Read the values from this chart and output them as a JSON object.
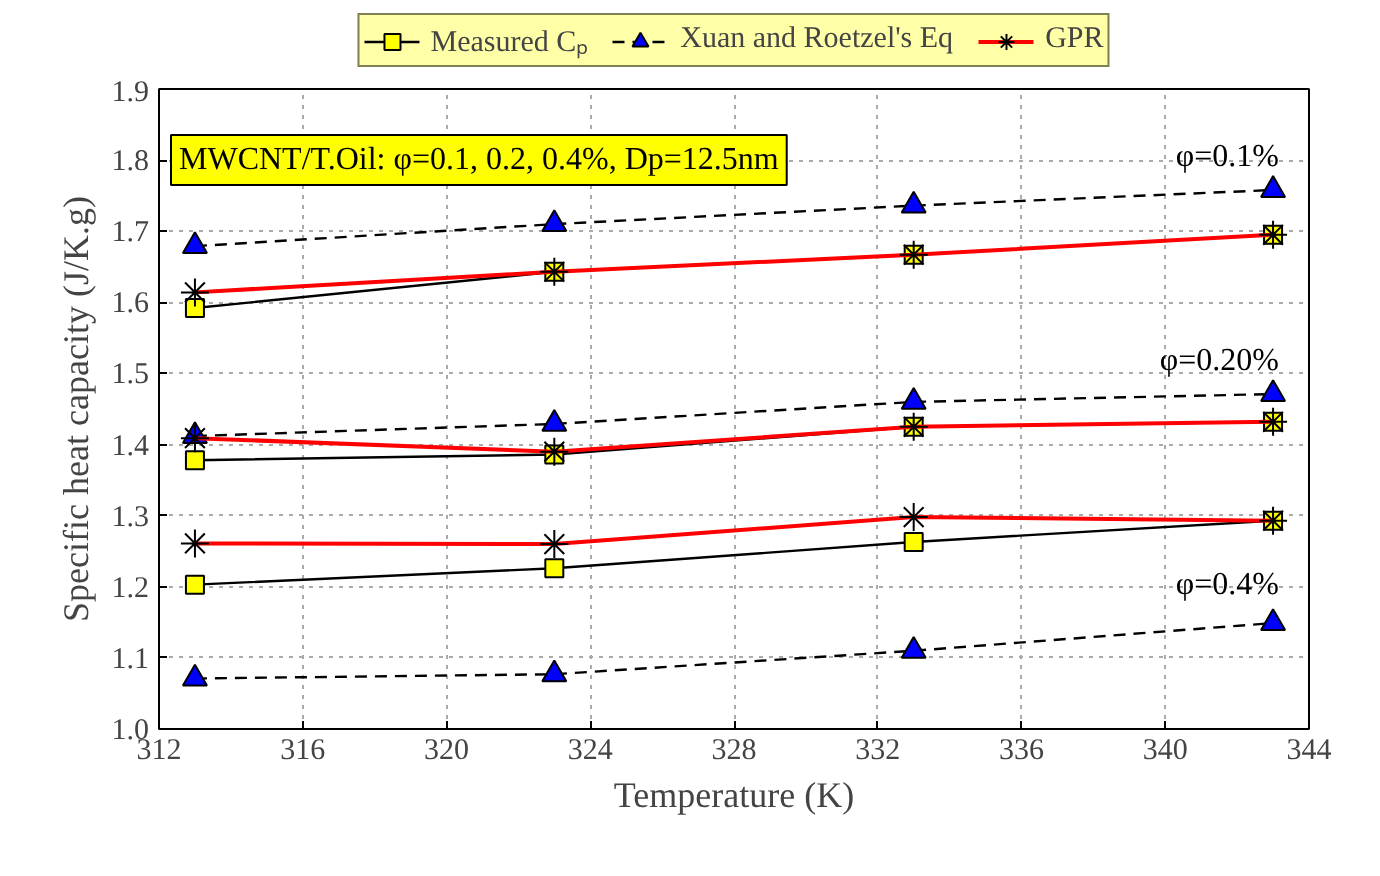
{
  "chart_data": {
    "type": "line",
    "xlabel": "Temperature (K)",
    "ylabel": "Specific heat capacity (J/K.g)",
    "x": [
      313,
      323,
      333,
      343
    ],
    "series": [
      {
        "name": "Measured Cₚ",
        "color": "#000000",
        "marker": "square",
        "line_style": "solid",
        "values": [
          1.592,
          1.643,
          1.667,
          1.695
        ]
      },
      {
        "name": "Xuan and Roetzel's Eq",
        "color": "#000000",
        "marker": "triangle",
        "line_style": "dashed",
        "values": [
          1.679,
          1.71,
          1.736,
          1.758
        ]
      },
      {
        "name": "GPR",
        "color": "#ff0000",
        "marker": "cross",
        "line_style": "solid",
        "values": [
          1.614,
          1.643,
          1.667,
          1.695
        ]
      },
      {
        "color": "#000000",
        "marker": "square",
        "line_style": "solid",
        "values": [
          1.378,
          1.386,
          1.425,
          1.432
        ]
      },
      {
        "color": "#000000",
        "marker": "triangle",
        "line_style": "dashed",
        "values": [
          1.412,
          1.429,
          1.46,
          1.471
        ]
      },
      {
        "color": "#ff0000",
        "marker": "cross",
        "line_style": "solid",
        "values": [
          1.409,
          1.39,
          1.425,
          1.432
        ]
      },
      {
        "color": "#000000",
        "marker": "square",
        "line_style": "solid",
        "values": [
          1.203,
          1.226,
          1.263,
          1.293
        ]
      },
      {
        "color": "#000000",
        "marker": "triangle",
        "line_style": "dashed",
        "values": [
          1.071,
          1.077,
          1.11,
          1.149
        ]
      },
      {
        "color": "#ff0000",
        "marker": "cross",
        "line_style": "solid",
        "values": [
          1.261,
          1.26,
          1.298,
          1.293
        ]
      }
    ],
    "xlim": [
      312,
      344
    ],
    "xticks": [
      312,
      316,
      320,
      324,
      328,
      332,
      336,
      340,
      344
    ],
    "ylim": [
      1.0,
      1.9
    ],
    "yticks": [
      {
        "value": 1.0,
        "label": "1.0"
      },
      {
        "value": 1.1,
        "label": "1.1"
      },
      {
        "value": 1.2,
        "label": "1.2"
      },
      {
        "value": 1.3,
        "label": "1.3"
      },
      {
        "value": 1.4,
        "label": "1.4"
      },
      {
        "value": 1.5,
        "label": "1.5"
      },
      {
        "value": 1.6,
        "label": "1.6"
      },
      {
        "value": 1.7,
        "label": "1.7"
      },
      {
        "value": 1.8,
        "label": "1.8"
      },
      {
        "value": 1.9,
        "label": "1.9"
      }
    ],
    "annotations": [
      "MWCNT/T.Oil: φ=0.1, 0.2, 0.4%, Dp=12.5nm",
      "φ=0.1%",
      "φ=0.20%",
      "φ=0.4%"
    ],
    "grid": true,
    "legend": "top"
  }
}
